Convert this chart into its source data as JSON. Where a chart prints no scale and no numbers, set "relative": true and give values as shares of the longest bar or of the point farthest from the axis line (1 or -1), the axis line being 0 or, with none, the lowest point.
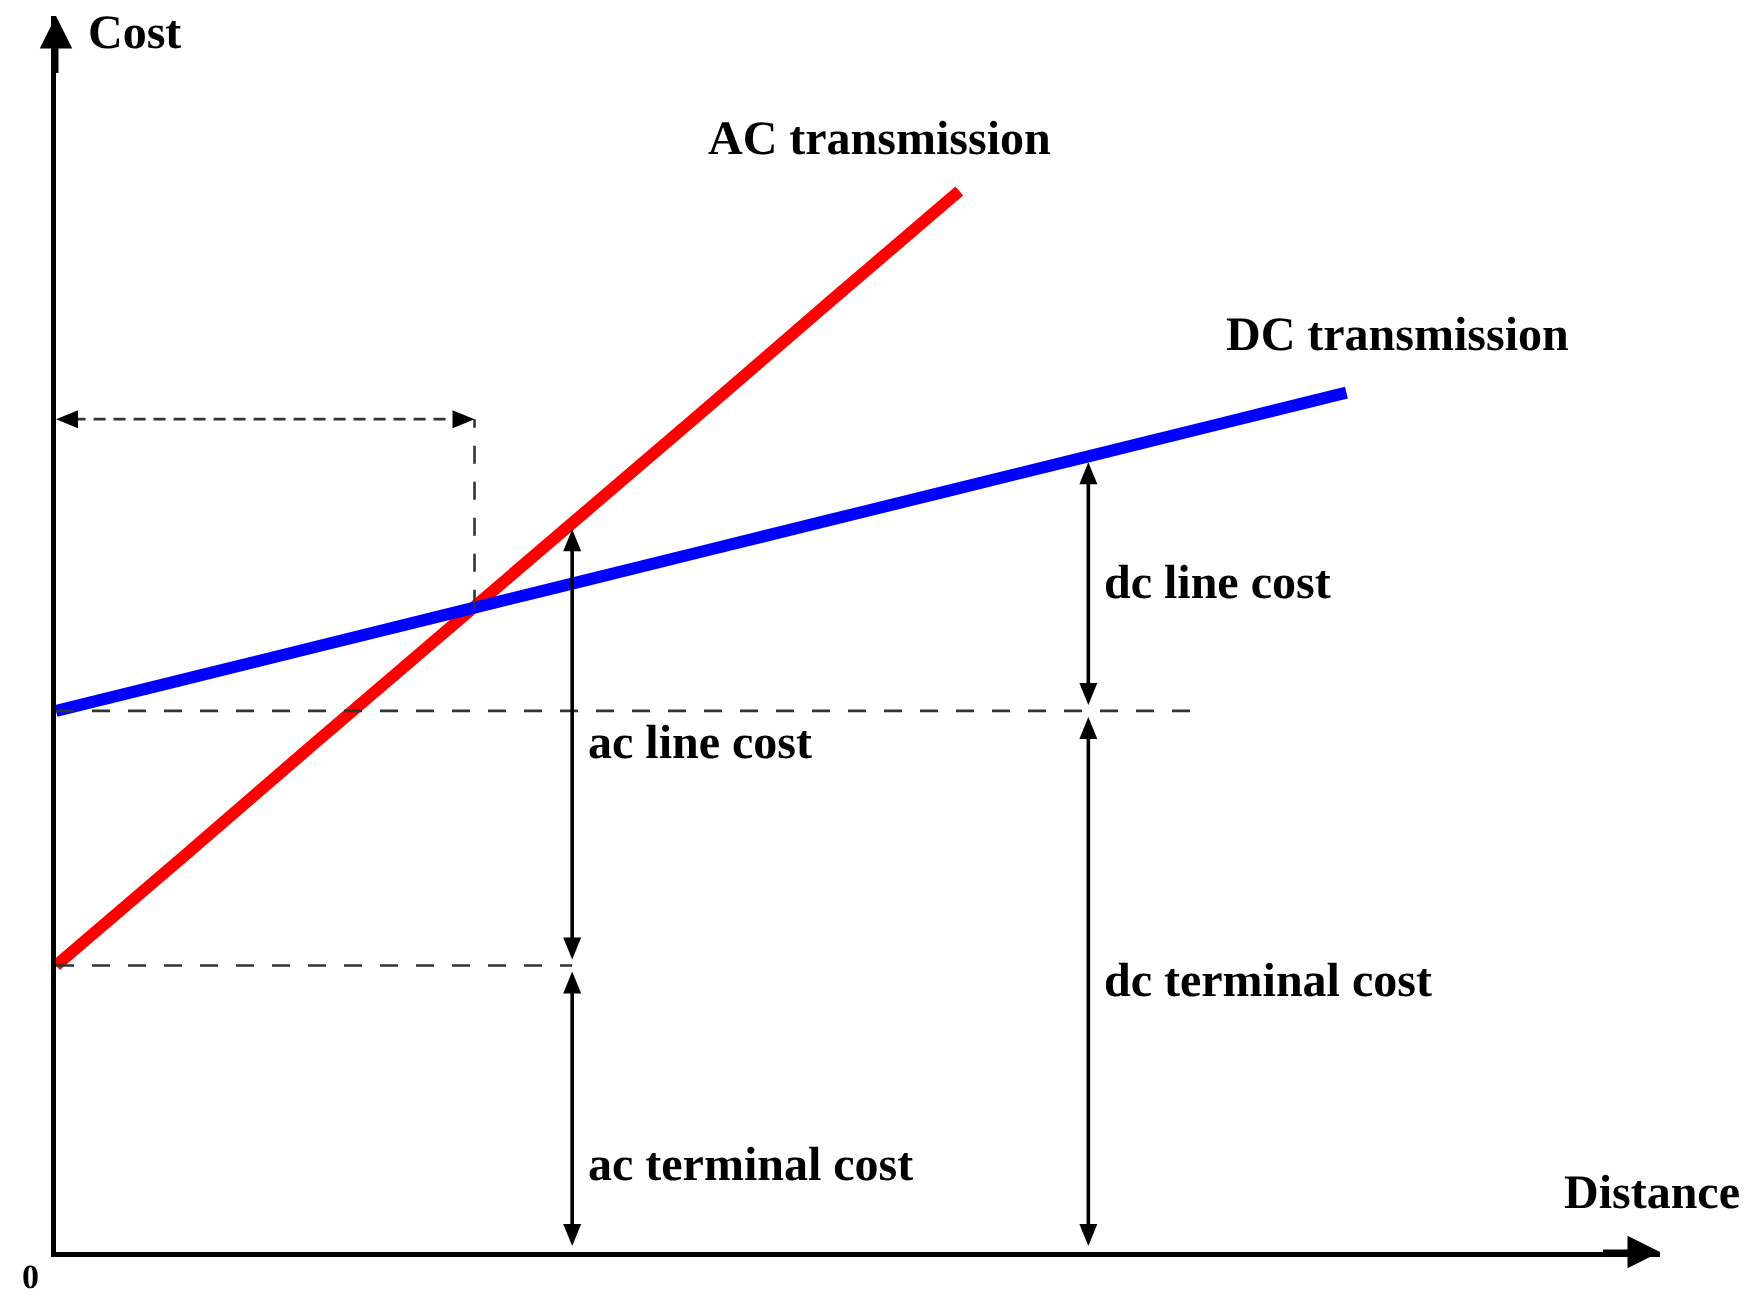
{
  "chart_data": {
    "type": "line",
    "relative": true,
    "xlabel": "Distance",
    "ylabel": "Cost",
    "ref_lines": [
      {
        "axis": "y",
        "value": 0.51,
        "line_style": "dashed",
        "color": "#333333"
      },
      {
        "axis": "y",
        "value": 0.27,
        "line_style": "dashed",
        "color": "#333333"
      }
    ],
    "categories": [
      null,
      null,
      null,
      null,
      null,
      null,
      null,
      null,
      null,
      null,
      null
    ],
    "series": [
      {
        "name": "AC transmission",
        "color": "#ff0000",
        "values": [
          0.27,
          0.374,
          0.479,
          0.583,
          0.687,
          0.791,
          0.896,
          1,
          null,
          null,
          null
        ]
      },
      {
        "name": "DC transmission",
        "color": "#0000ff",
        "values": [
          0.51,
          0.54,
          0.57,
          0.6,
          0.63,
          0.66,
          0.69,
          0.72,
          0.75,
          0.78,
          0.81
        ]
      }
    ],
    "annotations": [
      "ac line cost",
      "ac terminal cost",
      "dc line cost",
      "dc terminal cost",
      "0"
    ]
  }
}
